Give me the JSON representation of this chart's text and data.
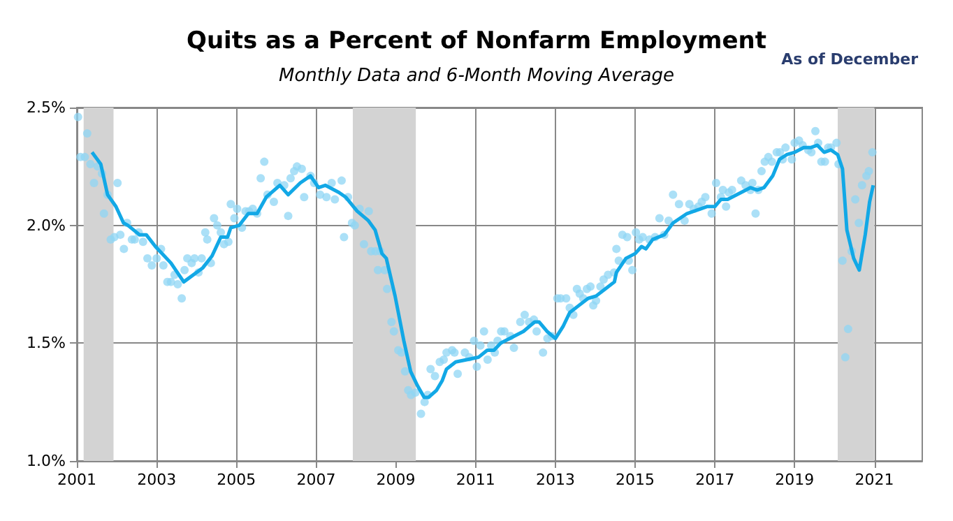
{
  "chart_data": {
    "type": "scatter",
    "title": "Quits as a Percent of Nonfarm Employment",
    "subtitle": "Monthly Data and 6-Month Moving Average",
    "annotations": [
      "As of December"
    ],
    "xlim": [
      2001,
      2022.2
    ],
    "xticks": [
      2001,
      2003,
      2005,
      2007,
      2009,
      2011,
      2013,
      2015,
      2017,
      2019,
      2021
    ],
    "ylim": [
      1,
      2.5
    ],
    "yticks": [
      {
        "value": 1,
        "label": "1.0%"
      },
      {
        "value": 1.5,
        "label": "1.5%"
      },
      {
        "value": 2,
        "label": "2.0%"
      },
      {
        "value": 2.5,
        "label": "2.5%"
      }
    ],
    "grid": true,
    "bands": [
      {
        "axis": "x",
        "from": 2001.17,
        "to": 2001.92,
        "color": "#d3d3d3"
      },
      {
        "axis": "x",
        "from": 2007.92,
        "to": 2009.5,
        "color": "#d3d3d3"
      },
      {
        "axis": "x",
        "from": 2020.08,
        "to": 2021.0,
        "color": "#d3d3d3"
      }
    ],
    "series": [
      {
        "marker": "circle",
        "color": "#8fd6f4",
        "x": [
          2001.03,
          2001.09,
          2001.2,
          2001.26,
          2001.34,
          2001.43,
          2001.52,
          2001.63,
          2001.68,
          2001.77,
          2001.85,
          2001.94,
          2002.02,
          2002.09,
          2002.18,
          2002.26,
          2002.38,
          2002.45,
          2002.55,
          2002.66,
          2002.77,
          2002.88,
          2003.0,
          2003.11,
          2003.17,
          2003.27,
          2003.36,
          2003.45,
          2003.53,
          2003.63,
          2003.7,
          2003.77,
          2003.88,
          2003.95,
          2004.05,
          2004.13,
          2004.22,
          2004.27,
          2004.36,
          2004.44,
          2004.52,
          2004.61,
          2004.69,
          2004.8,
          2004.86,
          2004.95,
          2005.02,
          2005.14,
          2005.23,
          2005.32,
          2005.41,
          2005.52,
          2005.61,
          2005.7,
          2005.78,
          2005.94,
          2006.03,
          2006.2,
          2006.3,
          2006.36,
          2006.45,
          2006.52,
          2006.64,
          2006.7,
          2006.86,
          2006.95,
          2007.1,
          2007.26,
          2007.39,
          2007.47,
          2007.64,
          2007.7,
          2007.8,
          2007.9,
          2007.97,
          2008.09,
          2008.2,
          2008.32,
          2008.38,
          2008.49,
          2008.55,
          2008.61,
          2008.72,
          2008.78,
          2008.89,
          2008.95,
          2009.06,
          2009.14,
          2009.23,
          2009.31,
          2009.38,
          2009.49,
          2009.63,
          2009.72,
          2009.8,
          2009.87,
          2009.98,
          2010.1,
          2010.2,
          2010.27,
          2010.41,
          2010.47,
          2010.55,
          2010.73,
          2010.84,
          2010.96,
          2011.03,
          2011.12,
          2011.21,
          2011.3,
          2011.39,
          2011.48,
          2011.55,
          2011.64,
          2011.72,
          2011.87,
          2011.96,
          2012.12,
          2012.23,
          2012.34,
          2012.46,
          2012.53,
          2012.69,
          2012.8,
          2012.91,
          2013.05,
          2013.13,
          2013.27,
          2013.36,
          2013.45,
          2013.54,
          2013.61,
          2013.7,
          2013.79,
          2013.88,
          2013.95,
          2014.02,
          2014.13,
          2014.21,
          2014.32,
          2014.47,
          2014.53,
          2014.59,
          2014.68,
          2014.8,
          2014.84,
          2014.93,
          2015.02,
          2015.1,
          2015.19,
          2015.36,
          2015.5,
          2015.61,
          2015.73,
          2015.84,
          2015.95,
          2016.1,
          2016.24,
          2016.36,
          2016.47,
          2016.59,
          2016.67,
          2016.76,
          2016.92,
          2017.03,
          2017.15,
          2017.2,
          2017.28,
          2017.35,
          2017.43,
          2017.66,
          2017.77,
          2017.89,
          2017.94,
          2018.02,
          2018.09,
          2018.17,
          2018.25,
          2018.34,
          2018.43,
          2018.55,
          2018.63,
          2018.7,
          2018.77,
          2018.93,
          2019.0,
          2019.11,
          2019.2,
          2019.34,
          2019.42,
          2019.52,
          2019.59,
          2019.67,
          2019.76,
          2019.84,
          2019.91,
          2020.05,
          2020.1,
          2020.2,
          2020.27,
          2020.34,
          2020.43,
          2020.52,
          2020.61,
          2020.69,
          2020.8,
          2020.86,
          2020.95
        ],
        "values": [
          2.46,
          2.29,
          2.29,
          2.39,
          2.26,
          2.18,
          2.25,
          2.22,
          2.05,
          2.13,
          1.94,
          1.95,
          2.18,
          1.96,
          1.9,
          2.01,
          1.94,
          1.94,
          1.97,
          1.93,
          1.86,
          1.83,
          1.86,
          1.9,
          1.83,
          1.76,
          1.76,
          1.79,
          1.75,
          1.69,
          1.81,
          1.86,
          1.84,
          1.86,
          1.8,
          1.86,
          1.97,
          1.94,
          1.84,
          2.03,
          2.0,
          1.97,
          1.92,
          1.93,
          2.09,
          2.03,
          2.07,
          1.99,
          2.06,
          2.06,
          2.07,
          2.05,
          2.2,
          2.27,
          2.13,
          2.1,
          2.18,
          2.17,
          2.04,
          2.2,
          2.23,
          2.25,
          2.24,
          2.12,
          2.21,
          2.18,
          2.13,
          2.12,
          2.18,
          2.11,
          2.19,
          1.95,
          2.12,
          2.01,
          2.0,
          2.07,
          1.92,
          2.06,
          1.89,
          1.89,
          1.81,
          1.89,
          1.81,
          1.73,
          1.59,
          1.55,
          1.47,
          1.46,
          1.38,
          1.3,
          1.28,
          1.29,
          1.2,
          1.25,
          1.28,
          1.39,
          1.36,
          1.42,
          1.43,
          1.46,
          1.47,
          1.46,
          1.37,
          1.46,
          1.44,
          1.51,
          1.4,
          1.49,
          1.55,
          1.43,
          1.49,
          1.46,
          1.51,
          1.55,
          1.55,
          1.53,
          1.48,
          1.59,
          1.62,
          1.59,
          1.6,
          1.55,
          1.46,
          1.52,
          1.53,
          1.69,
          1.69,
          1.69,
          1.65,
          1.62,
          1.73,
          1.71,
          1.69,
          1.73,
          1.74,
          1.66,
          1.68,
          1.74,
          1.77,
          1.79,
          1.8,
          1.9,
          1.85,
          1.96,
          1.95,
          1.85,
          1.81,
          1.97,
          1.94,
          1.95,
          1.94,
          1.95,
          2.03,
          1.96,
          2.02,
          2.13,
          2.09,
          2.02,
          2.09,
          2.07,
          2.08,
          2.1,
          2.12,
          2.05,
          2.18,
          2.12,
          2.15,
          2.08,
          2.14,
          2.15,
          2.19,
          2.17,
          2.15,
          2.18,
          2.05,
          2.15,
          2.23,
          2.27,
          2.29,
          2.27,
          2.31,
          2.31,
          2.28,
          2.33,
          2.28,
          2.35,
          2.36,
          2.34,
          2.32,
          2.31,
          2.4,
          2.35,
          2.27,
          2.27,
          2.33,
          2.33,
          2.35,
          2.26,
          1.85,
          1.44,
          1.56,
          1.89,
          2.11,
          2.01,
          2.17,
          2.21,
          2.23,
          2.31
        ]
      },
      {
        "type": "line",
        "marker": "none",
        "line_style": "solid",
        "color": "#12a8e6",
        "x": [
          2001.38,
          2001.6,
          2001.77,
          2001.98,
          2002.17,
          2002.28,
          2002.57,
          2002.74,
          2002.97,
          2003.36,
          2003.68,
          2004.16,
          2004.39,
          2004.61,
          2004.78,
          2004.86,
          2005.07,
          2005.3,
          2005.52,
          2005.75,
          2006.09,
          2006.3,
          2006.6,
          2006.86,
          2007.06,
          2007.23,
          2007.57,
          2007.74,
          2008.03,
          2008.31,
          2008.48,
          2008.65,
          2008.76,
          2008.98,
          2009.2,
          2009.37,
          2009.54,
          2009.71,
          2009.82,
          2010.02,
          2010.16,
          2010.27,
          2010.5,
          2010.78,
          2011.07,
          2011.29,
          2011.46,
          2011.63,
          2011.97,
          2012.2,
          2012.48,
          2012.59,
          2012.79,
          2013.0,
          2013.19,
          2013.36,
          2013.59,
          2013.82,
          2014.02,
          2014.25,
          2014.48,
          2014.53,
          2014.77,
          2015.0,
          2015.16,
          2015.27,
          2015.44,
          2015.73,
          2015.95,
          2016.3,
          2016.64,
          2016.81,
          2017.0,
          2017.15,
          2017.32,
          2017.55,
          2017.89,
          2018.06,
          2018.23,
          2018.45,
          2018.62,
          2018.8,
          2019.0,
          2019.23,
          2019.4,
          2019.57,
          2019.74,
          2019.91,
          2020.08,
          2020.2,
          2020.31,
          2020.48,
          2020.62,
          2020.77,
          2020.88,
          2020.97
        ],
        "values": [
          2.31,
          2.26,
          2.13,
          2.08,
          2.01,
          2.0,
          1.96,
          1.96,
          1.91,
          1.84,
          1.76,
          1.82,
          1.87,
          1.95,
          1.95,
          1.99,
          2.0,
          2.05,
          2.05,
          2.12,
          2.17,
          2.13,
          2.18,
          2.21,
          2.16,
          2.17,
          2.14,
          2.12,
          2.06,
          2.02,
          1.98,
          1.88,
          1.86,
          1.7,
          1.51,
          1.38,
          1.32,
          1.27,
          1.27,
          1.3,
          1.34,
          1.39,
          1.42,
          1.43,
          1.44,
          1.47,
          1.47,
          1.5,
          1.53,
          1.55,
          1.59,
          1.59,
          1.55,
          1.52,
          1.57,
          1.63,
          1.66,
          1.69,
          1.7,
          1.73,
          1.76,
          1.8,
          1.86,
          1.88,
          1.91,
          1.9,
          1.94,
          1.96,
          2.01,
          2.05,
          2.07,
          2.08,
          2.08,
          2.11,
          2.11,
          2.13,
          2.16,
          2.15,
          2.16,
          2.21,
          2.28,
          2.3,
          2.31,
          2.33,
          2.33,
          2.34,
          2.31,
          2.32,
          2.3,
          2.24,
          1.98,
          1.86,
          1.81,
          1.96,
          2.1,
          2.17
        ]
      }
    ]
  }
}
